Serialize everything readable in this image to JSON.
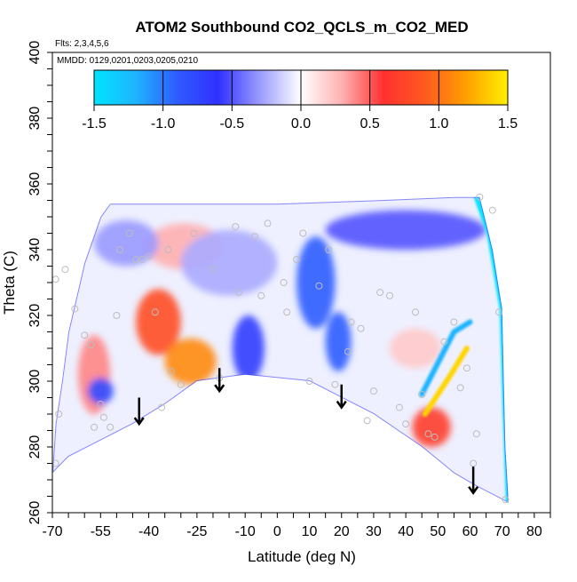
{
  "chart_data": {
    "type": "heatmap",
    "title": "ATOM2 Southbound CO2_QCLS_m_CO2_MED",
    "flights_label": "Flts: 2,3,4,5,6",
    "dates_label": "MMDD: 0129,0201,0203,0205,0210",
    "xlabel": "Latitude (deg N)",
    "ylabel": "Theta (C)",
    "xlim": [
      -70,
      85
    ],
    "ylim": [
      260,
      400
    ],
    "x_ticks": [
      -70,
      -55,
      -40,
      -25,
      -10,
      0,
      10,
      20,
      30,
      40,
      50,
      60,
      70,
      80
    ],
    "y_ticks": [
      260,
      280,
      300,
      320,
      340,
      360,
      380,
      400
    ],
    "colorbar": {
      "min": -1.5,
      "max": 1.5,
      "ticks": [
        -1.5,
        -1.0,
        -0.5,
        0.0,
        0.5,
        1.0,
        1.5
      ],
      "tick_labels": [
        "-1.5",
        "-1.0",
        "-0.5",
        "0.0",
        "0.5",
        "1.0",
        "1.5"
      ],
      "colors": [
        "#00e5ff",
        "#1fb4ff",
        "#2f5cff",
        "#3030ff",
        "#9a9aff",
        "#ffffff",
        "#ffb0b0",
        "#ff3030",
        "#ff5a20",
        "#ffa000",
        "#fff000"
      ]
    },
    "domain_outline": [
      [
        -70,
        272
      ],
      [
        -69,
        287
      ],
      [
        -67,
        300
      ],
      [
        -65,
        315
      ],
      [
        -60,
        336
      ],
      [
        -55,
        350
      ],
      [
        -52,
        354
      ],
      [
        -30,
        354
      ],
      [
        0,
        354
      ],
      [
        30,
        355
      ],
      [
        55,
        356
      ],
      [
        63,
        356
      ],
      [
        67,
        340
      ],
      [
        70,
        322
      ],
      [
        70.5,
        300
      ],
      [
        71,
        280
      ],
      [
        72,
        263
      ],
      [
        62,
        268
      ],
      [
        55,
        272
      ],
      [
        45,
        280
      ],
      [
        30,
        290
      ],
      [
        10,
        300
      ],
      [
        -10,
        302
      ],
      [
        -25,
        300
      ],
      [
        -35,
        293
      ],
      [
        -45,
        287
      ],
      [
        -55,
        282
      ],
      [
        -65,
        277
      ]
    ],
    "anomaly_features": [
      {
        "lat": -37,
        "theta": 318,
        "rx": 7,
        "ry": 10,
        "value": 0.8
      },
      {
        "lat": -27,
        "theta": 306,
        "rx": 8,
        "ry": 7,
        "value": 1.1
      },
      {
        "lat": -29,
        "theta": 341,
        "rx": 12,
        "ry": 7,
        "value": 0.3
      },
      {
        "lat": -57,
        "theta": 302,
        "rx": 5,
        "ry": 12,
        "value": 0.4
      },
      {
        "lat": -55,
        "theta": 297,
        "rx": 4,
        "ry": 4,
        "value": -0.8
      },
      {
        "lat": 12,
        "theta": 330,
        "rx": 6,
        "ry": 14,
        "value": -0.9
      },
      {
        "lat": 19,
        "theta": 312,
        "rx": 4,
        "ry": 9,
        "value": -0.9
      },
      {
        "lat": -9,
        "theta": 310,
        "rx": 5,
        "ry": 10,
        "value": -0.7
      },
      {
        "lat": 48,
        "theta": 286,
        "rx": 6,
        "ry": 6,
        "value": 0.7
      },
      {
        "lat": 43,
        "theta": 310,
        "rx": 8,
        "ry": 6,
        "value": 0.2
      },
      {
        "lat": 40,
        "theta": 346,
        "rx": 25,
        "ry": 6,
        "value": -0.5
      },
      {
        "lat": -15,
        "theta": 336,
        "rx": 15,
        "ry": 10,
        "value": -0.25
      },
      {
        "lat": -47,
        "theta": 342,
        "rx": 10,
        "ry": 7,
        "value": -0.3
      }
    ],
    "high_gradient_bands": [
      {
        "points": [
          [
            45,
            296
          ],
          [
            55,
            315
          ],
          [
            60,
            318
          ]
        ],
        "value": -1.2
      },
      {
        "points": [
          [
            46,
            290
          ],
          [
            54,
            302
          ],
          [
            59,
            310
          ]
        ],
        "value": 1.4
      },
      {
        "points": [
          [
            62,
            356
          ],
          [
            66,
            345
          ],
          [
            70,
            322
          ],
          [
            71,
            290
          ],
          [
            72,
            263
          ]
        ],
        "value": -1.5
      }
    ],
    "sample_points": [
      [
        -69,
        331
      ],
      [
        -69,
        275
      ],
      [
        -68,
        290
      ],
      [
        -66,
        334
      ],
      [
        -63,
        322
      ],
      [
        -60,
        314
      ],
      [
        -58,
        311
      ],
      [
        -57,
        286
      ],
      [
        -55,
        293
      ],
      [
        -54,
        289
      ],
      [
        -52,
        286
      ],
      [
        -50,
        320
      ],
      [
        -49,
        340
      ],
      [
        -46,
        345
      ],
      [
        -44,
        337
      ],
      [
        -42,
        337
      ],
      [
        -40,
        338
      ],
      [
        -38,
        321
      ],
      [
        -36,
        292
      ],
      [
        -34,
        340
      ],
      [
        -33,
        303
      ],
      [
        -30,
        299
      ],
      [
        -26,
        345
      ],
      [
        -20,
        334
      ],
      [
        -18,
        301
      ],
      [
        -13,
        347
      ],
      [
        -12,
        327
      ],
      [
        -7,
        344
      ],
      [
        -5,
        326
      ],
      [
        -3,
        348
      ],
      [
        2,
        330
      ],
      [
        3,
        321
      ],
      [
        6,
        337
      ],
      [
        8,
        345
      ],
      [
        10,
        300
      ],
      [
        13,
        329
      ],
      [
        16,
        340
      ],
      [
        18,
        299
      ],
      [
        22,
        309
      ],
      [
        23,
        318
      ],
      [
        26,
        316
      ],
      [
        28,
        288
      ],
      [
        30,
        297
      ],
      [
        32,
        327
      ],
      [
        35,
        326
      ],
      [
        38,
        292
      ],
      [
        40,
        287
      ],
      [
        43,
        321
      ],
      [
        45,
        296
      ],
      [
        47,
        284
      ],
      [
        49,
        283
      ],
      [
        52,
        312
      ],
      [
        55,
        318
      ],
      [
        57,
        298
      ],
      [
        59,
        304
      ],
      [
        61,
        275
      ],
      [
        62,
        284
      ],
      [
        63,
        356
      ],
      [
        67,
        352
      ],
      [
        69,
        321
      ],
      [
        71,
        264
      ]
    ],
    "arrows": [
      {
        "lat": -43,
        "theta_from": 295,
        "theta_to": 287
      },
      {
        "lat": -18,
        "theta_from": 304,
        "theta_to": 297
      },
      {
        "lat": 20,
        "theta_from": 299,
        "theta_to": 292
      },
      {
        "lat": 61,
        "theta_from": 274,
        "theta_to": 266
      }
    ]
  }
}
